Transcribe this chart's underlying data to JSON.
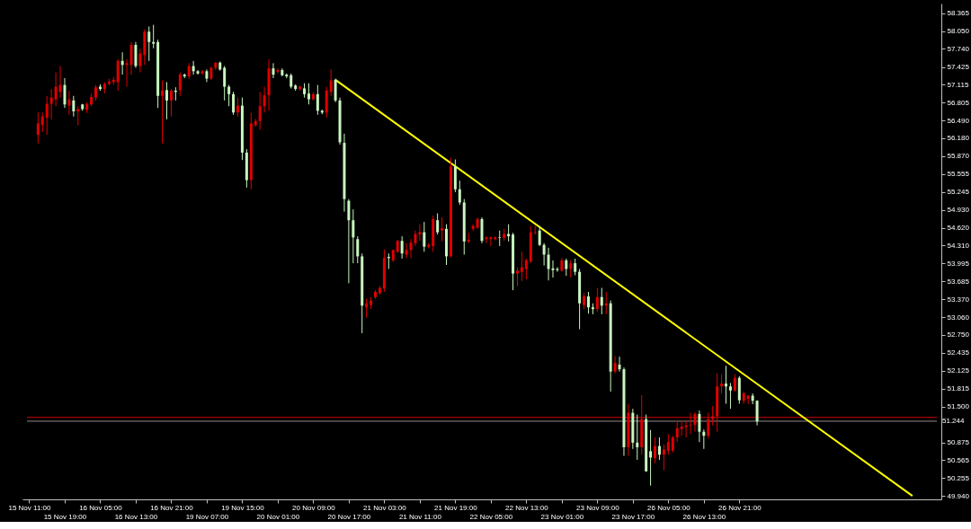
{
  "chart_data": {
    "type": "candlestick",
    "categories": [
      "15 Nov 11:00",
      null,
      null,
      null,
      null,
      null,
      null,
      null,
      "15 Nov 19:00",
      null,
      null,
      null,
      null,
      null,
      null,
      null,
      "16 Nov 05:00",
      null,
      null,
      null,
      null,
      null,
      null,
      null,
      "16 Nov 13:00",
      null,
      null,
      null,
      null,
      null,
      null,
      null,
      "16 Nov 21:00",
      null,
      null,
      null,
      null,
      null,
      null,
      null,
      "19 Nov 07:00",
      null,
      null,
      null,
      null,
      null,
      null,
      null,
      "19 Nov 15:00",
      null,
      null,
      null,
      null,
      null,
      null,
      null,
      "20 Nov 01:00",
      null,
      null,
      null,
      null,
      null,
      null,
      null,
      "20 Nov 09:00",
      null,
      null,
      null,
      null,
      null,
      null,
      null,
      "20 Nov 17:00",
      null,
      null,
      null,
      null,
      null,
      null,
      null,
      "21 Nov 03:00",
      null,
      null,
      null,
      null,
      null,
      null,
      null,
      "21 Nov 11:00",
      null,
      null,
      null,
      null,
      null,
      null,
      null,
      "21 Nov 19:00",
      null,
      null,
      null,
      null,
      null,
      null,
      null,
      "22 Nov 05:00",
      null,
      null,
      null,
      null,
      null,
      null,
      null,
      "22 Nov 13:00",
      null,
      null,
      null,
      null,
      null,
      null,
      null,
      "23 Nov 01:00",
      null,
      null,
      null,
      null,
      null,
      null,
      null,
      "23 Nov 09:00",
      null,
      null,
      null,
      null,
      null,
      null,
      null,
      "23 Nov 17:00",
      null,
      null,
      null,
      null,
      null,
      null,
      null,
      "26 Nov 05:00",
      null,
      null,
      null,
      null,
      null,
      null,
      null,
      "26 Nov 13:00",
      null,
      null,
      null,
      null,
      null,
      null,
      null,
      "26 Nov 21:00",
      null,
      null,
      null,
      null,
      null,
      null,
      null,
      null,
      null,
      null,
      null,
      null,
      null,
      null,
      null,
      null,
      null,
      null,
      null,
      null,
      null,
      null,
      null,
      null,
      null,
      null,
      null,
      null,
      null,
      null,
      null,
      null,
      null,
      null,
      null,
      null,
      null,
      null,
      null,
      null,
      null,
      null,
      null,
      null
    ],
    "ohlc": [
      null,
      null,
      [
        56.24,
        56.63,
        56.09,
        56.44
      ],
      [
        56.41,
        56.63,
        56.29,
        56.56
      ],
      [
        56.54,
        56.92,
        56.24,
        56.78
      ],
      [
        56.78,
        57.04,
        56.51,
        56.89
      ],
      [
        56.86,
        57.33,
        56.74,
        57.08
      ],
      [
        56.99,
        57.44,
        56.89,
        57.11
      ],
      [
        57.11,
        57.23,
        56.71,
        56.77
      ],
      [
        56.75,
        57.01,
        56.59,
        56.86
      ],
      [
        56.84,
        56.92,
        56.56,
        56.65
      ],
      [
        56.65,
        56.74,
        56.41,
        56.69
      ],
      [
        56.77,
        56.78,
        56.66,
        56.69
      ],
      [
        56.68,
        56.81,
        56.62,
        56.78
      ],
      [
        56.77,
        56.96,
        56.74,
        56.9
      ],
      [
        56.89,
        57.11,
        56.84,
        57.07
      ],
      [
        57.08,
        57.12,
        57.01,
        57.04
      ],
      [
        57.04,
        57.16,
        56.96,
        57.13
      ],
      [
        57.13,
        57.22,
        57.1,
        57.17
      ],
      [
        57.16,
        57.25,
        57.11,
        57.2
      ],
      [
        57.16,
        57.56,
        57.01,
        57.53
      ],
      [
        57.53,
        57.68,
        57.29,
        57.46
      ],
      [
        57.46,
        57.56,
        57.08,
        57.49
      ],
      [
        57.46,
        57.86,
        57.29,
        57.81
      ],
      [
        57.81,
        57.86,
        57.41,
        57.44
      ],
      [
        57.44,
        57.74,
        57.33,
        57.66
      ],
      [
        57.63,
        58.08,
        57.46,
        58.04
      ],
      [
        58.04,
        58.13,
        57.53,
        57.86
      ],
      [
        57.86,
        58.16,
        57.75,
        57.83
      ],
      [
        57.86,
        57.9,
        56.71,
        56.92
      ],
      [
        56.92,
        57.19,
        56.09,
        57.01
      ],
      [
        57.02,
        57.16,
        56.51,
        56.84
      ],
      [
        56.84,
        57.04,
        56.56,
        57.01
      ],
      [
        57.01,
        57.07,
        56.84,
        56.99
      ],
      [
        57.02,
        57.33,
        56.92,
        57.29
      ],
      [
        57.29,
        57.31,
        57.23,
        57.26
      ],
      [
        57.26,
        57.49,
        57.22,
        57.44
      ],
      [
        57.44,
        57.53,
        57.29,
        57.35
      ],
      [
        57.35,
        57.37,
        57.29,
        57.31
      ],
      [
        57.31,
        57.37,
        57.29,
        57.35
      ],
      [
        57.35,
        57.38,
        57.16,
        57.22
      ],
      [
        57.22,
        57.43,
        57.2,
        57.41
      ],
      [
        57.41,
        57.51,
        57.37,
        57.5
      ],
      [
        57.5,
        57.52,
        57.36,
        57.38
      ],
      [
        57.41,
        57.44,
        56.84,
        57.08
      ],
      [
        57.08,
        57.11,
        56.74,
        56.95
      ],
      [
        56.95,
        56.99,
        56.59,
        56.63
      ],
      [
        56.63,
        56.89,
        56.56,
        56.75
      ],
      [
        56.75,
        56.89,
        55.8,
        55.93
      ],
      [
        55.93,
        55.99,
        55.32,
        55.45
      ],
      [
        55.45,
        56.63,
        55.29,
        56.44
      ],
      [
        56.41,
        56.52,
        56.38,
        56.48
      ],
      [
        56.48,
        56.99,
        56.33,
        56.74
      ],
      [
        56.74,
        57.08,
        56.63,
        56.93
      ],
      [
        56.93,
        57.56,
        56.66,
        57.4
      ],
      [
        57.4,
        57.49,
        57.23,
        57.29
      ],
      [
        57.34,
        57.4,
        57.31,
        57.37
      ],
      [
        57.37,
        57.4,
        57.26,
        57.28
      ],
      [
        57.29,
        57.31,
        57.23,
        57.26
      ],
      [
        57.28,
        57.31,
        57.05,
        57.08
      ],
      [
        57.1,
        57.12,
        57.01,
        57.04
      ],
      [
        57.04,
        57.1,
        57.01,
        57.08
      ],
      [
        57.05,
        57.14,
        56.89,
        56.95
      ],
      [
        56.96,
        57.14,
        56.77,
        56.86
      ],
      [
        56.86,
        56.98,
        56.84,
        56.95
      ],
      [
        56.95,
        57.11,
        56.59,
        56.66
      ],
      [
        56.66,
        56.68,
        56.6,
        56.63
      ],
      [
        56.63,
        57.08,
        56.54,
        57.01
      ],
      [
        56.99,
        57.38,
        56.92,
        57.19
      ],
      [
        57.2,
        57.22,
        56.81,
        56.84
      ],
      [
        56.84,
        56.89,
        56.07,
        56.11
      ],
      [
        56.1,
        56.26,
        54.9,
        55.12
      ],
      [
        55.09,
        55.12,
        53.65,
        54.75
      ],
      [
        54.75,
        54.94,
        54.0,
        54.45
      ],
      [
        54.42,
        54.47,
        54.0,
        54.12
      ],
      [
        54.12,
        54.17,
        52.78,
        53.26
      ],
      [
        53.23,
        53.38,
        53.05,
        53.3
      ],
      [
        53.27,
        53.41,
        53.2,
        53.35
      ],
      [
        53.41,
        53.53,
        53.38,
        53.5
      ],
      [
        53.48,
        53.6,
        53.45,
        53.57
      ],
      [
        53.56,
        54.24,
        53.5,
        54.09
      ],
      [
        54.11,
        54.17,
        53.9,
        54.09
      ],
      [
        54.05,
        54.24,
        54.02,
        54.23
      ],
      [
        54.2,
        54.41,
        54.18,
        54.39
      ],
      [
        54.39,
        54.47,
        54.08,
        54.17
      ],
      [
        54.15,
        54.35,
        54.09,
        54.23
      ],
      [
        54.23,
        54.42,
        54.09,
        54.36
      ],
      [
        54.35,
        54.57,
        54.3,
        54.51
      ],
      [
        54.5,
        54.68,
        54.39,
        54.54
      ],
      [
        54.54,
        54.72,
        54.2,
        54.29
      ],
      [
        54.29,
        54.35,
        54.26,
        54.32
      ],
      [
        54.3,
        54.83,
        54.2,
        54.77
      ],
      [
        54.75,
        54.87,
        54.5,
        54.54
      ],
      [
        54.57,
        54.8,
        54.38,
        54.61
      ],
      [
        54.6,
        54.68,
        53.97,
        54.12
      ],
      [
        54.12,
        55.84,
        54.1,
        55.69
      ],
      [
        55.69,
        55.81,
        55.24,
        55.29
      ],
      [
        55.29,
        55.44,
        55.02,
        55.06
      ],
      [
        55.06,
        55.12,
        54.15,
        54.38
      ],
      [
        54.38,
        54.53,
        54.35,
        54.41
      ],
      [
        54.6,
        54.68,
        54.56,
        54.65
      ],
      [
        54.62,
        54.8,
        54.6,
        54.77
      ],
      [
        54.77,
        54.8,
        54.35,
        54.39
      ],
      [
        54.42,
        54.47,
        54.35,
        54.45
      ],
      [
        54.42,
        54.47,
        54.3,
        54.45
      ],
      [
        54.42,
        54.47,
        54.4,
        54.45
      ],
      [
        54.45,
        54.57,
        54.3,
        54.44
      ],
      [
        54.44,
        54.6,
        54.39,
        54.51
      ],
      [
        54.51,
        54.68,
        54.38,
        54.47
      ],
      [
        54.5,
        54.53,
        53.53,
        53.82
      ],
      [
        53.82,
        53.93,
        53.6,
        53.87
      ],
      [
        53.85,
        54.2,
        53.69,
        53.93
      ],
      [
        53.9,
        54.08,
        53.72,
        54.05
      ],
      [
        54.03,
        54.65,
        54.0,
        54.54
      ],
      [
        54.53,
        54.65,
        54.5,
        54.54
      ],
      [
        54.57,
        54.65,
        54.3,
        54.32
      ],
      [
        54.32,
        54.35,
        53.96,
        54.15
      ],
      [
        54.15,
        54.27,
        53.7,
        53.9
      ],
      [
        53.91,
        54.05,
        53.75,
        53.88
      ],
      [
        53.9,
        53.93,
        53.85,
        53.88
      ],
      [
        53.87,
        54.09,
        53.85,
        54.05
      ],
      [
        54.05,
        54.08,
        53.78,
        53.9
      ],
      [
        53.9,
        54.05,
        53.75,
        54.0
      ],
      [
        54.0,
        54.08,
        53.79,
        53.85
      ],
      [
        53.85,
        53.9,
        52.85,
        53.3
      ],
      [
        53.27,
        53.48,
        53.2,
        53.42
      ],
      [
        53.42,
        53.5,
        53.12,
        53.23
      ],
      [
        53.23,
        53.3,
        53.11,
        53.2
      ],
      [
        53.2,
        53.57,
        53.15,
        53.41
      ],
      [
        53.41,
        53.57,
        53.11,
        53.26
      ],
      [
        53.26,
        53.5,
        53.11,
        53.3
      ],
      [
        53.3,
        53.35,
        51.76,
        52.11
      ],
      [
        52.11,
        52.38,
        52.08,
        52.26
      ],
      [
        52.23,
        52.37,
        52.11,
        52.15
      ],
      [
        52.15,
        52.18,
        50.64,
        50.79
      ],
      [
        50.79,
        51.54,
        50.64,
        51.39
      ],
      [
        51.39,
        51.46,
        50.76,
        50.87
      ],
      [
        50.87,
        51.36,
        50.57,
        50.79
      ],
      [
        50.79,
        51.7,
        50.66,
        51.28
      ],
      [
        51.28,
        51.36,
        50.36,
        50.37
      ],
      [
        50.72,
        51.09,
        50.12,
        50.61
      ],
      [
        50.6,
        50.96,
        50.51,
        50.81
      ],
      [
        50.81,
        50.96,
        50.57,
        50.66
      ],
      [
        50.66,
        50.84,
        50.39,
        50.75
      ],
      [
        50.73,
        51.02,
        50.66,
        50.88
      ],
      [
        50.73,
        50.99,
        50.7,
        50.96
      ],
      [
        50.96,
        51.24,
        50.88,
        51.12
      ],
      [
        51.11,
        51.25,
        50.99,
        51.15
      ],
      [
        51.14,
        51.25,
        50.96,
        51.17
      ],
      [
        51.17,
        51.39,
        51.02,
        51.18
      ],
      [
        51.18,
        51.4,
        51.06,
        51.37
      ],
      [
        51.37,
        51.43,
        50.88,
        51.06
      ],
      [
        51.06,
        51.1,
        50.76,
        50.99
      ],
      [
        50.99,
        51.39,
        50.94,
        51.28
      ],
      [
        51.28,
        51.51,
        51.17,
        51.33
      ],
      [
        51.33,
        52.08,
        51.06,
        51.85
      ],
      [
        51.85,
        52.06,
        51.73,
        51.9
      ],
      [
        51.9,
        52.21,
        51.55,
        51.85
      ],
      [
        51.85,
        51.91,
        51.46,
        51.78
      ],
      [
        51.78,
        52.06,
        51.76,
        52.0
      ],
      [
        52.0,
        52.03,
        51.55,
        51.61
      ],
      [
        51.6,
        51.76,
        51.55,
        51.73
      ],
      [
        51.63,
        51.7,
        51.54,
        51.69
      ],
      [
        51.69,
        51.73,
        51.54,
        51.6
      ],
      [
        51.6,
        51.61,
        51.17,
        51.24
      ],
      null,
      null,
      null,
      null,
      null,
      null,
      null,
      null,
      null,
      null,
      null,
      null,
      null,
      null,
      null,
      null,
      null,
      null,
      null,
      null,
      null,
      null,
      null,
      null,
      null,
      null,
      null,
      null,
      null,
      null,
      null,
      null,
      null,
      null,
      null,
      null,
      null,
      null,
      null,
      null
    ],
    "colors": [
      null,
      null,
      "#e00000",
      "#e00000",
      "#e00000",
      "#e00000",
      "#e00000",
      "#e00000",
      "#c8f7c0",
      "#e00000",
      "#c8f7c0",
      "#e00000",
      "#c8f7c0",
      "#e00000",
      "#e00000",
      "#e00000",
      "#c8f7c0",
      "#e00000",
      "#e00000",
      "#e00000",
      "#e00000",
      "#c8f7c0",
      "#e00000",
      "#e00000",
      "#c8f7c0",
      "#e00000",
      "#e00000",
      "#c8f7c0",
      "#c8f7c0",
      "#c8f7c0",
      "#e00000",
      "#c8f7c0",
      "#e00000",
      "#c8f7c0",
      "#e00000",
      "#c8f7c0",
      "#e00000",
      "#c8f7c0",
      "#c8f7c0",
      "#e00000",
      "#c8f7c0",
      "#e00000",
      "#e00000",
      "#c8f7c0",
      "#c8f7c0",
      "#c8f7c0",
      "#c8f7c0",
      "#e00000",
      "#c8f7c0",
      "#c8f7c0",
      "#e00000",
      "#e00000",
      "#e00000",
      "#e00000",
      "#e00000",
      "#c8f7c0",
      "#e00000",
      "#c8f7c0",
      "#c8f7c0",
      "#c8f7c0",
      "#c8f7c0",
      "#e00000",
      "#c8f7c0",
      "#c8f7c0",
      "#e00000",
      "#c8f7c0",
      "#c8f7c0",
      "#e00000",
      "#e00000",
      "#c8f7c0",
      "#c8f7c0",
      "#c8f7c0",
      "#c8f7c0",
      "#c8f7c0",
      "#c8f7c0",
      "#c8f7c0",
      "#e00000",
      "#e00000",
      "#e00000",
      "#e00000",
      "#e00000",
      "#c8f7c0",
      "#e00000",
      "#e00000",
      "#c8f7c0",
      "#e00000",
      "#e00000",
      "#e00000",
      "#e00000",
      "#c8f7c0",
      "#e00000",
      "#e00000",
      "#c8f7c0",
      "#e00000",
      "#c8f7c0",
      "#e00000",
      "#c8f7c0",
      "#c8f7c0",
      "#c8f7c0",
      "#e00000",
      "#e00000",
      "#e00000",
      "#c8f7c0",
      "#e00000",
      "#e00000",
      "#e00000",
      "#c8f7c0",
      "#e00000",
      "#c8f7c0",
      "#c8f7c0",
      "#e00000",
      "#e00000",
      "#e00000",
      "#e00000",
      "#e00000",
      "#c8f7c0",
      "#c8f7c0",
      "#c8f7c0",
      "#c8f7c0",
      "#c8f7c0",
      "#e00000",
      "#c8f7c0",
      "#e00000",
      "#c8f7c0",
      "#c8f7c0",
      "#e00000",
      "#c8f7c0",
      "#c8f7c0",
      "#e00000",
      "#c8f7c0",
      "#e00000",
      "#c8f7c0",
      "#e00000",
      "#c8f7c0",
      "#c8f7c0",
      "#e00000",
      "#c8f7c0",
      "#c8f7c0",
      "#e00000",
      "#c8f7c0",
      "#c8f7c0",
      "#e00000",
      "#c8f7c0",
      "#e00000",
      "#e00000",
      "#e00000",
      "#e00000",
      "#e00000",
      "#e00000",
      "#e00000",
      "#e00000",
      "#c8f7c0",
      "#c8f7c0",
      "#e00000",
      "#e00000",
      "#e00000",
      "#e00000",
      "#c8f7c0",
      "#c8f7c0",
      "#e00000",
      "#c8f7c0",
      "#e00000",
      "#e00000",
      "#c8f7c0",
      "#c8f7c0",
      null,
      null,
      null,
      null,
      null,
      null,
      null,
      null,
      null,
      null,
      null,
      null,
      null,
      null,
      null,
      null,
      null,
      null,
      null,
      null,
      null,
      null,
      null,
      null,
      null,
      null,
      null,
      null,
      null,
      null,
      null,
      null,
      null,
      null,
      null,
      null,
      null,
      null,
      null,
      null
    ],
    "series": [
      {
        "type": "line",
        "color": "#ffff00",
        "values": [
          null,
          null,
          null,
          null,
          null,
          null,
          null,
          null,
          null,
          null,
          null,
          null,
          null,
          null,
          null,
          null,
          null,
          null,
          null,
          null,
          null,
          null,
          null,
          null,
          null,
          null,
          null,
          null,
          null,
          null,
          null,
          null,
          null,
          null,
          null,
          null,
          null,
          null,
          null,
          null,
          null,
          null,
          null,
          null,
          null,
          null,
          null,
          null,
          null,
          null,
          null,
          null,
          null,
          null,
          null,
          null,
          null,
          null,
          null,
          null,
          null,
          null,
          null,
          null,
          null,
          null,
          null,
          null,
          null,
          57.2,
          null,
          null,
          null,
          null,
          null,
          null,
          null,
          null,
          null,
          null,
          null,
          null,
          null,
          null,
          null,
          null,
          null,
          null,
          null,
          null,
          null,
          null,
          null,
          null,
          null,
          null,
          null,
          null,
          null,
          null,
          null,
          null,
          null,
          null,
          null,
          null,
          null,
          null,
          null,
          null,
          null,
          null,
          null,
          null,
          null,
          null,
          null,
          null,
          null,
          null,
          null,
          null,
          null,
          null,
          null,
          null,
          null,
          null,
          null,
          null,
          null,
          null,
          null,
          null,
          null,
          null,
          null,
          null,
          null,
          null,
          null,
          null,
          null,
          null,
          null,
          null,
          null,
          null,
          null,
          null,
          null,
          null,
          null,
          null,
          null,
          null,
          null,
          null,
          null,
          null,
          null,
          null,
          null,
          null,
          null,
          null,
          null,
          null,
          null,
          null,
          null,
          null,
          null,
          null,
          null,
          null,
          null,
          null,
          null,
          null,
          null,
          null,
          null,
          null,
          null,
          null,
          null,
          null,
          null,
          null,
          null,
          null,
          null,
          null,
          null,
          null,
          null,
          null,
          null,
          49.94,
          null,
          null,
          null,
          null,
          null
        ]
      }
    ],
    "ref_lines": [
      {
        "axis": "y",
        "value": 51.31,
        "color": "#d00000"
      },
      {
        "axis": "y",
        "value": 51.244,
        "label": "51.244",
        "color": "#8c8c8c"
      }
    ],
    "ylim": [
      49.88,
      58.53
    ],
    "yticks": [
      {
        "value": 58.365,
        "label": "58.365"
      },
      {
        "value": 58.05,
        "label": "58.050"
      },
      {
        "value": 57.74,
        "label": "57.740"
      },
      {
        "value": 57.425,
        "label": "57.425"
      },
      {
        "value": 57.115,
        "label": "57.115"
      },
      {
        "value": 56.805,
        "label": "56.805"
      },
      {
        "value": 56.49,
        "label": "56.490"
      },
      {
        "value": 56.18,
        "label": "56.180"
      },
      {
        "value": 55.87,
        "label": "55.870"
      },
      {
        "value": 55.555,
        "label": "55.555"
      },
      {
        "value": 55.245,
        "label": "55.245"
      },
      {
        "value": 54.93,
        "label": "54.930"
      },
      {
        "value": 54.62,
        "label": "54.620"
      },
      {
        "value": 54.31,
        "label": "54.310"
      },
      {
        "value": 53.995,
        "label": "53.995"
      },
      {
        "value": 53.685,
        "label": "53.685"
      },
      {
        "value": 53.37,
        "label": "53.370"
      },
      {
        "value": 53.06,
        "label": "53.060"
      },
      {
        "value": 52.75,
        "label": "52.750"
      },
      {
        "value": 52.435,
        "label": "52.435"
      },
      {
        "value": 52.125,
        "label": "52.125"
      },
      {
        "value": 51.815,
        "label": "51.815"
      },
      {
        "value": 51.5,
        "label": "51.500"
      },
      {
        "value": 50.875,
        "label": "50.875"
      },
      {
        "value": 50.565,
        "label": "50.565"
      },
      {
        "value": 50.255,
        "label": "50.255"
      },
      {
        "value": 49.94,
        "label": "49.940"
      }
    ]
  }
}
